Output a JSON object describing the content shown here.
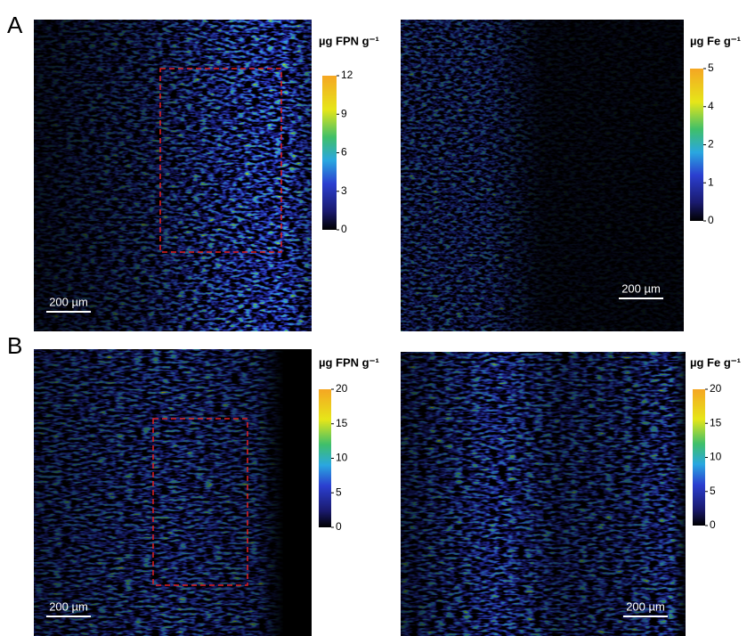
{
  "panels": [
    {
      "label": "A",
      "maps": [
        {
          "unit": "µg FPN g⁻¹",
          "scale_bar": "200 µm",
          "colorbar_ticks": [
            "12",
            "9",
            "6",
            "3",
            "0"
          ]
        },
        {
          "unit": "µg Fe g⁻¹",
          "scale_bar": "200 µm",
          "colorbar_ticks": [
            "5",
            "4",
            "2",
            "1",
            "0"
          ]
        }
      ]
    },
    {
      "label": "B",
      "maps": [
        {
          "unit": "µg FPN g⁻¹",
          "scale_bar": "200 µm",
          "colorbar_ticks": [
            "20",
            "15",
            "10",
            "5",
            "0"
          ]
        },
        {
          "unit": "µg Fe g⁻¹",
          "scale_bar": "200 µm",
          "colorbar_ticks": [
            "20",
            "15",
            "10",
            "5",
            "0"
          ]
        }
      ]
    }
  ]
}
